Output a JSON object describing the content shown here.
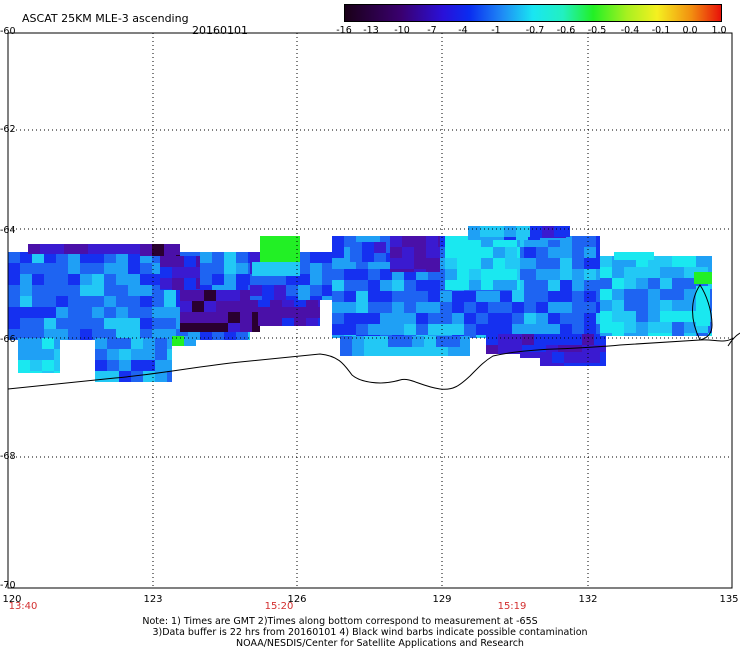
{
  "header": {
    "title": "ASCAT 25KM MLE-3 ascending",
    "date": "20160101"
  },
  "colorbar": {
    "labels": [
      "-16",
      "-13",
      "-10",
      "-7",
      "-4",
      "-1",
      "-0.7",
      "-0.6",
      "-0.5",
      "-0.4",
      "-0.1",
      "0.0",
      "1.0"
    ],
    "stops": [
      {
        "pos": 0.0,
        "color": "#1a0018"
      },
      {
        "pos": 0.15,
        "color": "#3a0070"
      },
      {
        "pos": 0.26,
        "color": "#2a10d8"
      },
      {
        "pos": 0.33,
        "color": "#0a2cf0"
      },
      {
        "pos": 0.42,
        "color": "#1f8cf5"
      },
      {
        "pos": 0.5,
        "color": "#19e6f2"
      },
      {
        "pos": 0.58,
        "color": "#22f0c0"
      },
      {
        "pos": 0.66,
        "color": "#22f025"
      },
      {
        "pos": 0.75,
        "color": "#a8f020"
      },
      {
        "pos": 0.83,
        "color": "#f5f020"
      },
      {
        "pos": 0.92,
        "color": "#f29010"
      },
      {
        "pos": 1.0,
        "color": "#e8120a"
      }
    ]
  },
  "axes": {
    "lat_labels": [
      "-60",
      "-62",
      "-64",
      "-66",
      "-68",
      "-70"
    ],
    "lon_labels": [
      "120",
      "123",
      "126",
      "129",
      "132",
      "135"
    ]
  },
  "time_labels": [
    "13:40",
    "15:20",
    "15:19"
  ],
  "notes": [
    "Note: 1) Times are GMT 2)Times along bottom correspond to measurement at -65S",
    "3)Data buffer is 22 hrs from 20160101 4) Black wind barbs indicate possible contamination",
    "NOAA/NESDIS/Center for Satellite Applications and Research"
  ],
  "colors": {
    "dark": "#2a0030",
    "purple": "#4a10a8",
    "indigo": "#3a1ad0",
    "blue": "#1530f0",
    "mid_blue": "#1e64f2",
    "sky": "#1fa0f5",
    "light": "#22c8f5",
    "cyan": "#1ae8f0",
    "green": "#22f025",
    "time_red": "#d32f2f"
  }
}
